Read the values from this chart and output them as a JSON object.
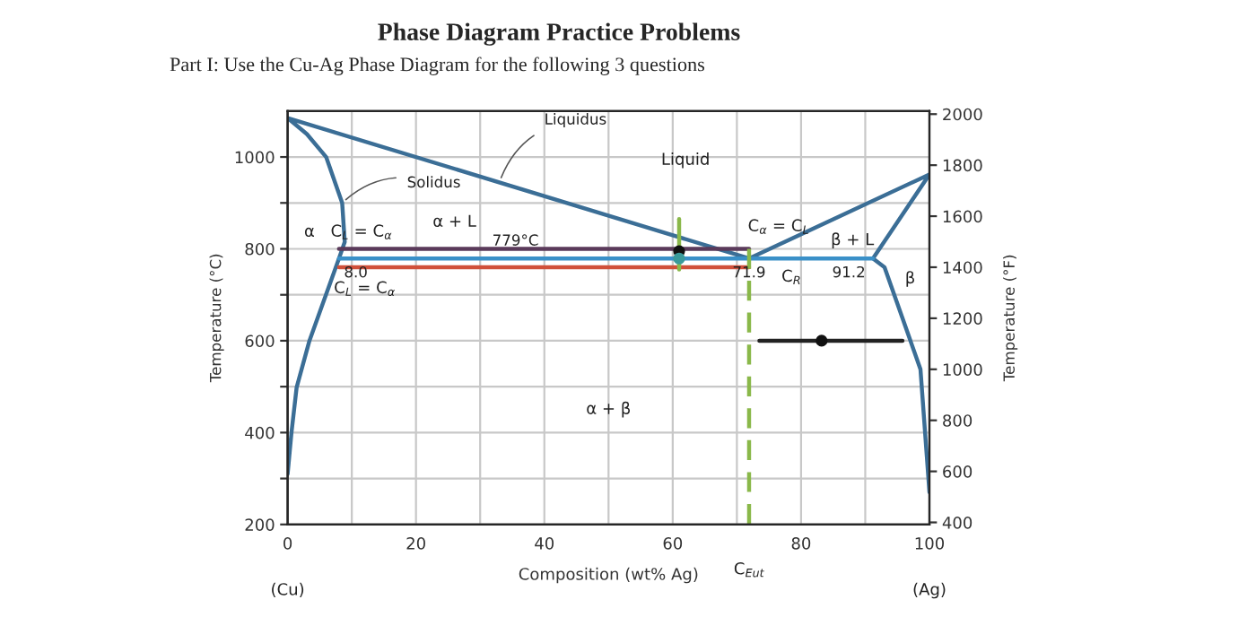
{
  "chart_data": {
    "type": "line",
    "title": "Phase Diagram Practice Problems",
    "subtitle": "Part I: Use the Cu-Ag Phase Diagram for the following 3 questions",
    "xlabel": "Composition (wt% Ag)",
    "ylabel": "Temperature (°C)",
    "y2label": "Temperature (°F)",
    "xlim": [
      0,
      100
    ],
    "xticks": [
      0,
      {
        "value": 10,
        "label": null
      },
      20,
      {
        "value": 30,
        "label": null
      },
      40,
      {
        "value": 50,
        "label": null
      },
      60,
      {
        "value": 70,
        "label": null
      },
      80,
      {
        "value": 90,
        "label": null
      },
      100
    ],
    "ylim": [
      200,
      1100
    ],
    "yticks": [
      200,
      {
        "value": 300,
        "label": null
      },
      400,
      {
        "value": 500,
        "label": null
      },
      600,
      {
        "value": 700,
        "label": null
      },
      800,
      {
        "value": 900,
        "label": null
      },
      1000
    ],
    "y2lim": [
      392,
      2012
    ],
    "y2ticks": [
      400,
      600,
      800,
      1000,
      1200,
      1400,
      1600,
      1800,
      2000
    ],
    "grid": true,
    "series": [
      {
        "color": "#3b6e96",
        "x": [
          0,
          0.6,
          1.4,
          3.4,
          8,
          8.9,
          8.5,
          6,
          3,
          0,
          71.9,
          100,
          91.2,
          93,
          95.8,
          98.6,
          100
        ],
        "values": [
          310,
          400,
          498,
          600,
          779,
          815,
          900,
          1000,
          1050,
          1085,
          779,
          962,
          779,
          760,
          649,
          538,
          270
        ]
      },
      {
        "color": "#3a90c8",
        "x": [
          8,
          91.2
        ],
        "values": [
          779,
          779
        ]
      },
      {
        "color": "#5a3a5a",
        "x": [
          8,
          71.9
        ],
        "values": [
          800,
          800
        ]
      },
      {
        "color": "#d0503a",
        "x": [
          8,
          71.9
        ],
        "values": [
          760,
          760
        ]
      },
      {
        "color": "#8ab84a",
        "x": [
          61,
          61
        ],
        "values": [
          865,
          755
        ]
      },
      {
        "color": "#8ab84a",
        "line_style": "dashed",
        "x": [
          71.9,
          71.9
        ],
        "values": [
          800,
          200
        ]
      },
      {
        "color": "#222222",
        "x": [
          73.5,
          95.8
        ],
        "values": [
          600,
          600
        ]
      },
      {
        "type": "scatter",
        "color": "#111111",
        "marker": "circle",
        "x": [
          61,
          83.2
        ],
        "values": [
          795,
          600
        ]
      },
      {
        "type": "scatter",
        "color": "#3a9a9a",
        "marker": "circle",
        "x": [
          61
        ],
        "values": [
          779
        ]
      }
    ],
    "annotations": [
      {
        "text": "Liquidus",
        "x": 33,
        "y": 945
      },
      {
        "text": "Solidus",
        "x": 8.5,
        "y": 900
      },
      {
        "text": "779°C",
        "x": 35.5,
        "y": 779
      },
      {
        "text": "8.0",
        "x": 8,
        "y": 779
      },
      {
        "text": "71.9",
        "x": 71.9,
        "y": 779
      },
      {
        "text": "91.2",
        "x": 91.2,
        "y": 779
      },
      "Liquid",
      "α",
      "C$_{L}$ = C$_{α}$",
      "α + L",
      "C$_{L}$ = C$_{α}$",
      "C$_{R}$",
      "C$_{α}$ = C$_{L}$",
      "β + L",
      "β",
      "α + β",
      "(Cu)",
      "(Ag)",
      "C$_{Eut}$"
    ]
  }
}
